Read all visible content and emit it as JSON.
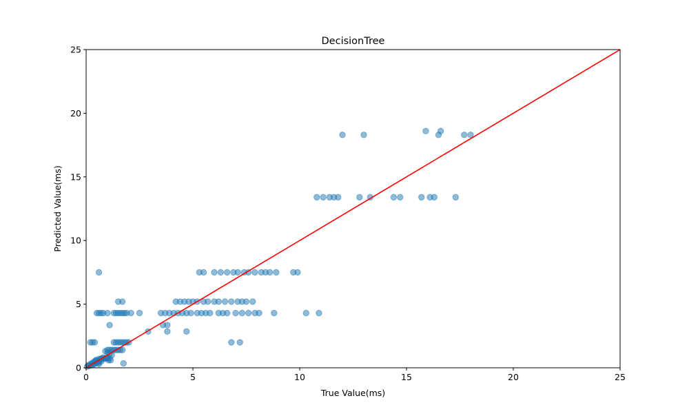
{
  "chart_data": {
    "type": "scatter",
    "title": "DecisionTree",
    "xlabel": "True Value(ms)",
    "ylabel": "Predicted Value(ms)",
    "xlim": [
      0,
      25
    ],
    "ylim": [
      0,
      25
    ],
    "xticks": [
      0,
      5,
      10,
      15,
      20,
      25
    ],
    "yticks": [
      0,
      5,
      10,
      15,
      20,
      25
    ],
    "grid": false,
    "legend": "none",
    "colors": {
      "points": "#1f77b4",
      "reference_line": "#ff0000"
    },
    "reference_line": {
      "x": [
        0,
        25
      ],
      "y": [
        0,
        25
      ]
    },
    "points": [
      [
        0.05,
        0.1
      ],
      [
        0.1,
        0.2
      ],
      [
        0.15,
        0.15
      ],
      [
        0.2,
        0.3
      ],
      [
        0.25,
        0.25
      ],
      [
        0.3,
        0.4
      ],
      [
        0.35,
        0.35
      ],
      [
        0.4,
        0.5
      ],
      [
        0.45,
        0.45
      ],
      [
        0.5,
        0.6
      ],
      [
        0.55,
        0.5
      ],
      [
        0.6,
        0.7
      ],
      [
        0.65,
        0.6
      ],
      [
        0.7,
        0.7
      ],
      [
        0.75,
        0.75
      ],
      [
        0.8,
        0.8
      ],
      [
        0.85,
        0.7
      ],
      [
        0.9,
        0.75
      ],
      [
        0.95,
        0.75
      ],
      [
        1.0,
        0.75
      ],
      [
        1.05,
        0.6
      ],
      [
        1.1,
        0.75
      ],
      [
        0.3,
        0.2
      ],
      [
        0.4,
        0.3
      ],
      [
        0.5,
        0.4
      ],
      [
        0.6,
        0.4
      ],
      [
        0.7,
        0.5
      ],
      [
        0.45,
        0.6
      ],
      [
        0.6,
        0.3
      ],
      [
        0.2,
        2.0
      ],
      [
        0.3,
        2.0
      ],
      [
        0.4,
        2.0
      ],
      [
        1.3,
        2.0
      ],
      [
        1.4,
        2.0
      ],
      [
        1.5,
        2.0
      ],
      [
        1.6,
        2.0
      ],
      [
        1.7,
        2.0
      ],
      [
        1.8,
        2.0
      ],
      [
        1.9,
        2.0
      ],
      [
        2.0,
        2.0
      ],
      [
        6.8,
        2.0
      ],
      [
        7.2,
        2.0
      ],
      [
        1.0,
        1.4
      ],
      [
        1.1,
        1.4
      ],
      [
        1.2,
        1.4
      ],
      [
        1.3,
        1.4
      ],
      [
        1.4,
        1.4
      ],
      [
        1.5,
        1.4
      ],
      [
        1.6,
        1.4
      ],
      [
        1.7,
        1.4
      ],
      [
        0.9,
        1.3
      ],
      [
        1.0,
        1.2
      ],
      [
        1.1,
        1.1
      ],
      [
        1.2,
        1.0
      ],
      [
        1.15,
        0.6
      ],
      [
        1.75,
        0.35
      ],
      [
        1.1,
        3.35
      ],
      [
        2.9,
        2.85
      ],
      [
        3.8,
        2.85
      ],
      [
        4.7,
        2.85
      ],
      [
        0.5,
        4.3
      ],
      [
        0.6,
        4.3
      ],
      [
        0.7,
        4.3
      ],
      [
        0.8,
        4.3
      ],
      [
        1.0,
        4.3
      ],
      [
        1.3,
        4.3
      ],
      [
        1.4,
        4.3
      ],
      [
        1.5,
        4.3
      ],
      [
        1.6,
        4.3
      ],
      [
        1.7,
        4.3
      ],
      [
        1.8,
        4.3
      ],
      [
        1.9,
        4.3
      ],
      [
        2.1,
        4.3
      ],
      [
        2.5,
        4.3
      ],
      [
        3.5,
        4.3
      ],
      [
        3.7,
        4.3
      ],
      [
        3.9,
        4.3
      ],
      [
        4.1,
        4.3
      ],
      [
        4.3,
        4.3
      ],
      [
        4.5,
        4.3
      ],
      [
        4.7,
        4.3
      ],
      [
        4.9,
        4.3
      ],
      [
        5.2,
        4.3
      ],
      [
        5.4,
        4.3
      ],
      [
        5.6,
        4.3
      ],
      [
        5.8,
        4.3
      ],
      [
        6.2,
        4.3
      ],
      [
        6.4,
        4.3
      ],
      [
        6.6,
        4.3
      ],
      [
        7.0,
        4.3
      ],
      [
        7.3,
        4.3
      ],
      [
        7.6,
        4.3
      ],
      [
        7.9,
        4.3
      ],
      [
        8.1,
        4.3
      ],
      [
        8.8,
        4.3
      ],
      [
        10.3,
        4.3
      ],
      [
        10.9,
        4.3
      ],
      [
        1.5,
        5.2
      ],
      [
        1.7,
        5.2
      ],
      [
        4.2,
        5.2
      ],
      [
        4.4,
        5.2
      ],
      [
        4.6,
        5.2
      ],
      [
        4.8,
        5.2
      ],
      [
        5.0,
        5.2
      ],
      [
        5.2,
        5.2
      ],
      [
        5.5,
        5.2
      ],
      [
        5.7,
        5.2
      ],
      [
        6.0,
        5.2
      ],
      [
        6.2,
        5.2
      ],
      [
        6.5,
        5.2
      ],
      [
        6.8,
        5.2
      ],
      [
        7.1,
        5.2
      ],
      [
        7.3,
        5.2
      ],
      [
        7.5,
        5.2
      ],
      [
        7.8,
        5.2
      ],
      [
        3.6,
        3.35
      ],
      [
        3.8,
        3.35
      ],
      [
        0.6,
        7.5
      ],
      [
        5.3,
        7.5
      ],
      [
        5.5,
        7.5
      ],
      [
        6.0,
        7.5
      ],
      [
        6.3,
        7.5
      ],
      [
        6.6,
        7.5
      ],
      [
        6.9,
        7.5
      ],
      [
        7.1,
        7.5
      ],
      [
        7.4,
        7.5
      ],
      [
        7.6,
        7.5
      ],
      [
        7.9,
        7.5
      ],
      [
        8.2,
        7.5
      ],
      [
        8.4,
        7.5
      ],
      [
        8.6,
        7.5
      ],
      [
        8.9,
        7.5
      ],
      [
        9.7,
        7.5
      ],
      [
        9.9,
        7.5
      ],
      [
        10.8,
        13.4
      ],
      [
        11.1,
        13.4
      ],
      [
        11.4,
        13.4
      ],
      [
        11.6,
        13.4
      ],
      [
        11.8,
        13.4
      ],
      [
        12.8,
        13.4
      ],
      [
        13.3,
        13.4
      ],
      [
        14.4,
        13.4
      ],
      [
        14.7,
        13.4
      ],
      [
        15.7,
        13.4
      ],
      [
        16.1,
        13.4
      ],
      [
        16.3,
        13.4
      ],
      [
        17.3,
        13.4
      ],
      [
        12.0,
        18.3
      ],
      [
        13.0,
        18.3
      ],
      [
        15.9,
        18.6
      ],
      [
        16.5,
        18.3
      ],
      [
        16.6,
        18.6
      ],
      [
        17.7,
        18.3
      ],
      [
        18.0,
        18.3
      ]
    ]
  }
}
